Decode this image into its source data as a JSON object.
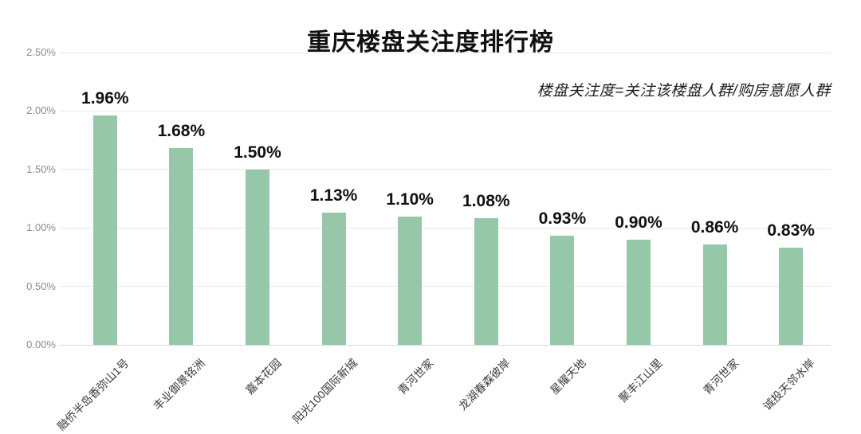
{
  "chart_data": {
    "type": "bar",
    "title": "重庆楼盘关注度排行榜",
    "annotation": "楼盘关注度=关注该楼盘人群/购房意愿人群",
    "categories": [
      "融侨半岛香弥山1号",
      "丰业御景铭洲",
      "嘉本花园",
      "阳光100国际新城",
      "青河世家",
      "龙湖春森彼岸",
      "星耀天地",
      "聚丰江山里",
      "青河世家",
      "诚投天邻水岸"
    ],
    "values": [
      1.96,
      1.68,
      1.5,
      1.13,
      1.1,
      1.08,
      0.93,
      0.9,
      0.86,
      0.83
    ],
    "value_labels": [
      "1.96%",
      "1.68%",
      "1.50%",
      "1.13%",
      "1.10%",
      "1.08%",
      "0.93%",
      "0.90%",
      "0.86%",
      "0.83%"
    ],
    "xlabel": "",
    "ylabel": "",
    "ylim": [
      0,
      2.5
    ],
    "ytick_values": [
      0,
      0.5,
      1.0,
      1.5,
      2.0,
      2.5
    ],
    "ytick_labels": [
      "0.00%",
      "0.50%",
      "1.00%",
      "1.50%",
      "2.00%",
      "2.50%"
    ],
    "grid": true,
    "legend": "none",
    "bar_color": "#95C7A8",
    "grid_color": "#e8e8e8",
    "baseline_color": "#d6d6d6",
    "background_color": "#ffffff"
  }
}
